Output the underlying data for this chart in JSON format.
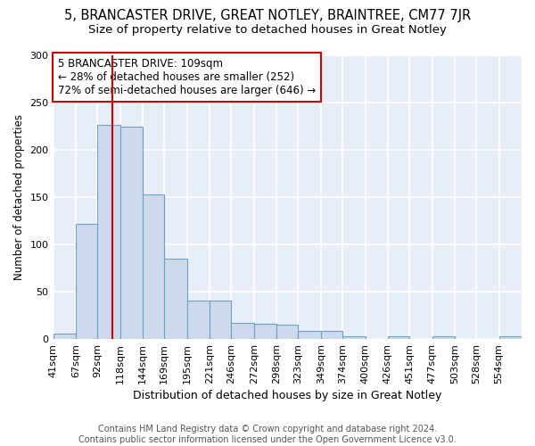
{
  "title": "5, BRANCASTER DRIVE, GREAT NOTLEY, BRAINTREE, CM77 7JR",
  "subtitle": "Size of property relative to detached houses in Great Notley",
  "xlabel": "Distribution of detached houses by size in Great Notley",
  "ylabel": "Number of detached properties",
  "bar_values": [
    6,
    122,
    226,
    224,
    153,
    85,
    41,
    41,
    17,
    16,
    15,
    9,
    9,
    3,
    0,
    3,
    0,
    3,
    0,
    0,
    3
  ],
  "bin_edges": [
    41,
    67,
    92,
    118,
    144,
    169,
    195,
    221,
    246,
    272,
    298,
    323,
    349,
    374,
    400,
    426,
    451,
    477,
    503,
    528,
    554,
    580
  ],
  "tick_labels": [
    "41sqm",
    "67sqm",
    "92sqm",
    "118sqm",
    "144sqm",
    "169sqm",
    "195sqm",
    "221sqm",
    "246sqm",
    "272sqm",
    "298sqm",
    "323sqm",
    "349sqm",
    "374sqm",
    "400sqm",
    "426sqm",
    "451sqm",
    "477sqm",
    "503sqm",
    "528sqm",
    "554sqm"
  ],
  "bar_color": "#ccdaeb",
  "bar_edge_color": "#6fa0c8",
  "plot_bg_color": "#e8eef8",
  "fig_bg_color": "#ffffff",
  "grid_color": "#ffffff",
  "vline_x": 109,
  "vline_color": "#cc0000",
  "annotation_text": "5 BRANCASTER DRIVE: 109sqm\n← 28% of detached houses are smaller (252)\n72% of semi-detached houses are larger (646) →",
  "annotation_box_color": "#ffffff",
  "annotation_box_edge": "#cc0000",
  "ylim": [
    0,
    300
  ],
  "yticks": [
    0,
    50,
    100,
    150,
    200,
    250,
    300
  ],
  "footnote": "Contains HM Land Registry data © Crown copyright and database right 2024.\nContains public sector information licensed under the Open Government Licence v3.0.",
  "title_fontsize": 10.5,
  "subtitle_fontsize": 9.5,
  "xlabel_fontsize": 9,
  "ylabel_fontsize": 8.5,
  "tick_fontsize": 8,
  "footnote_fontsize": 7,
  "annotation_fontsize": 8.5
}
